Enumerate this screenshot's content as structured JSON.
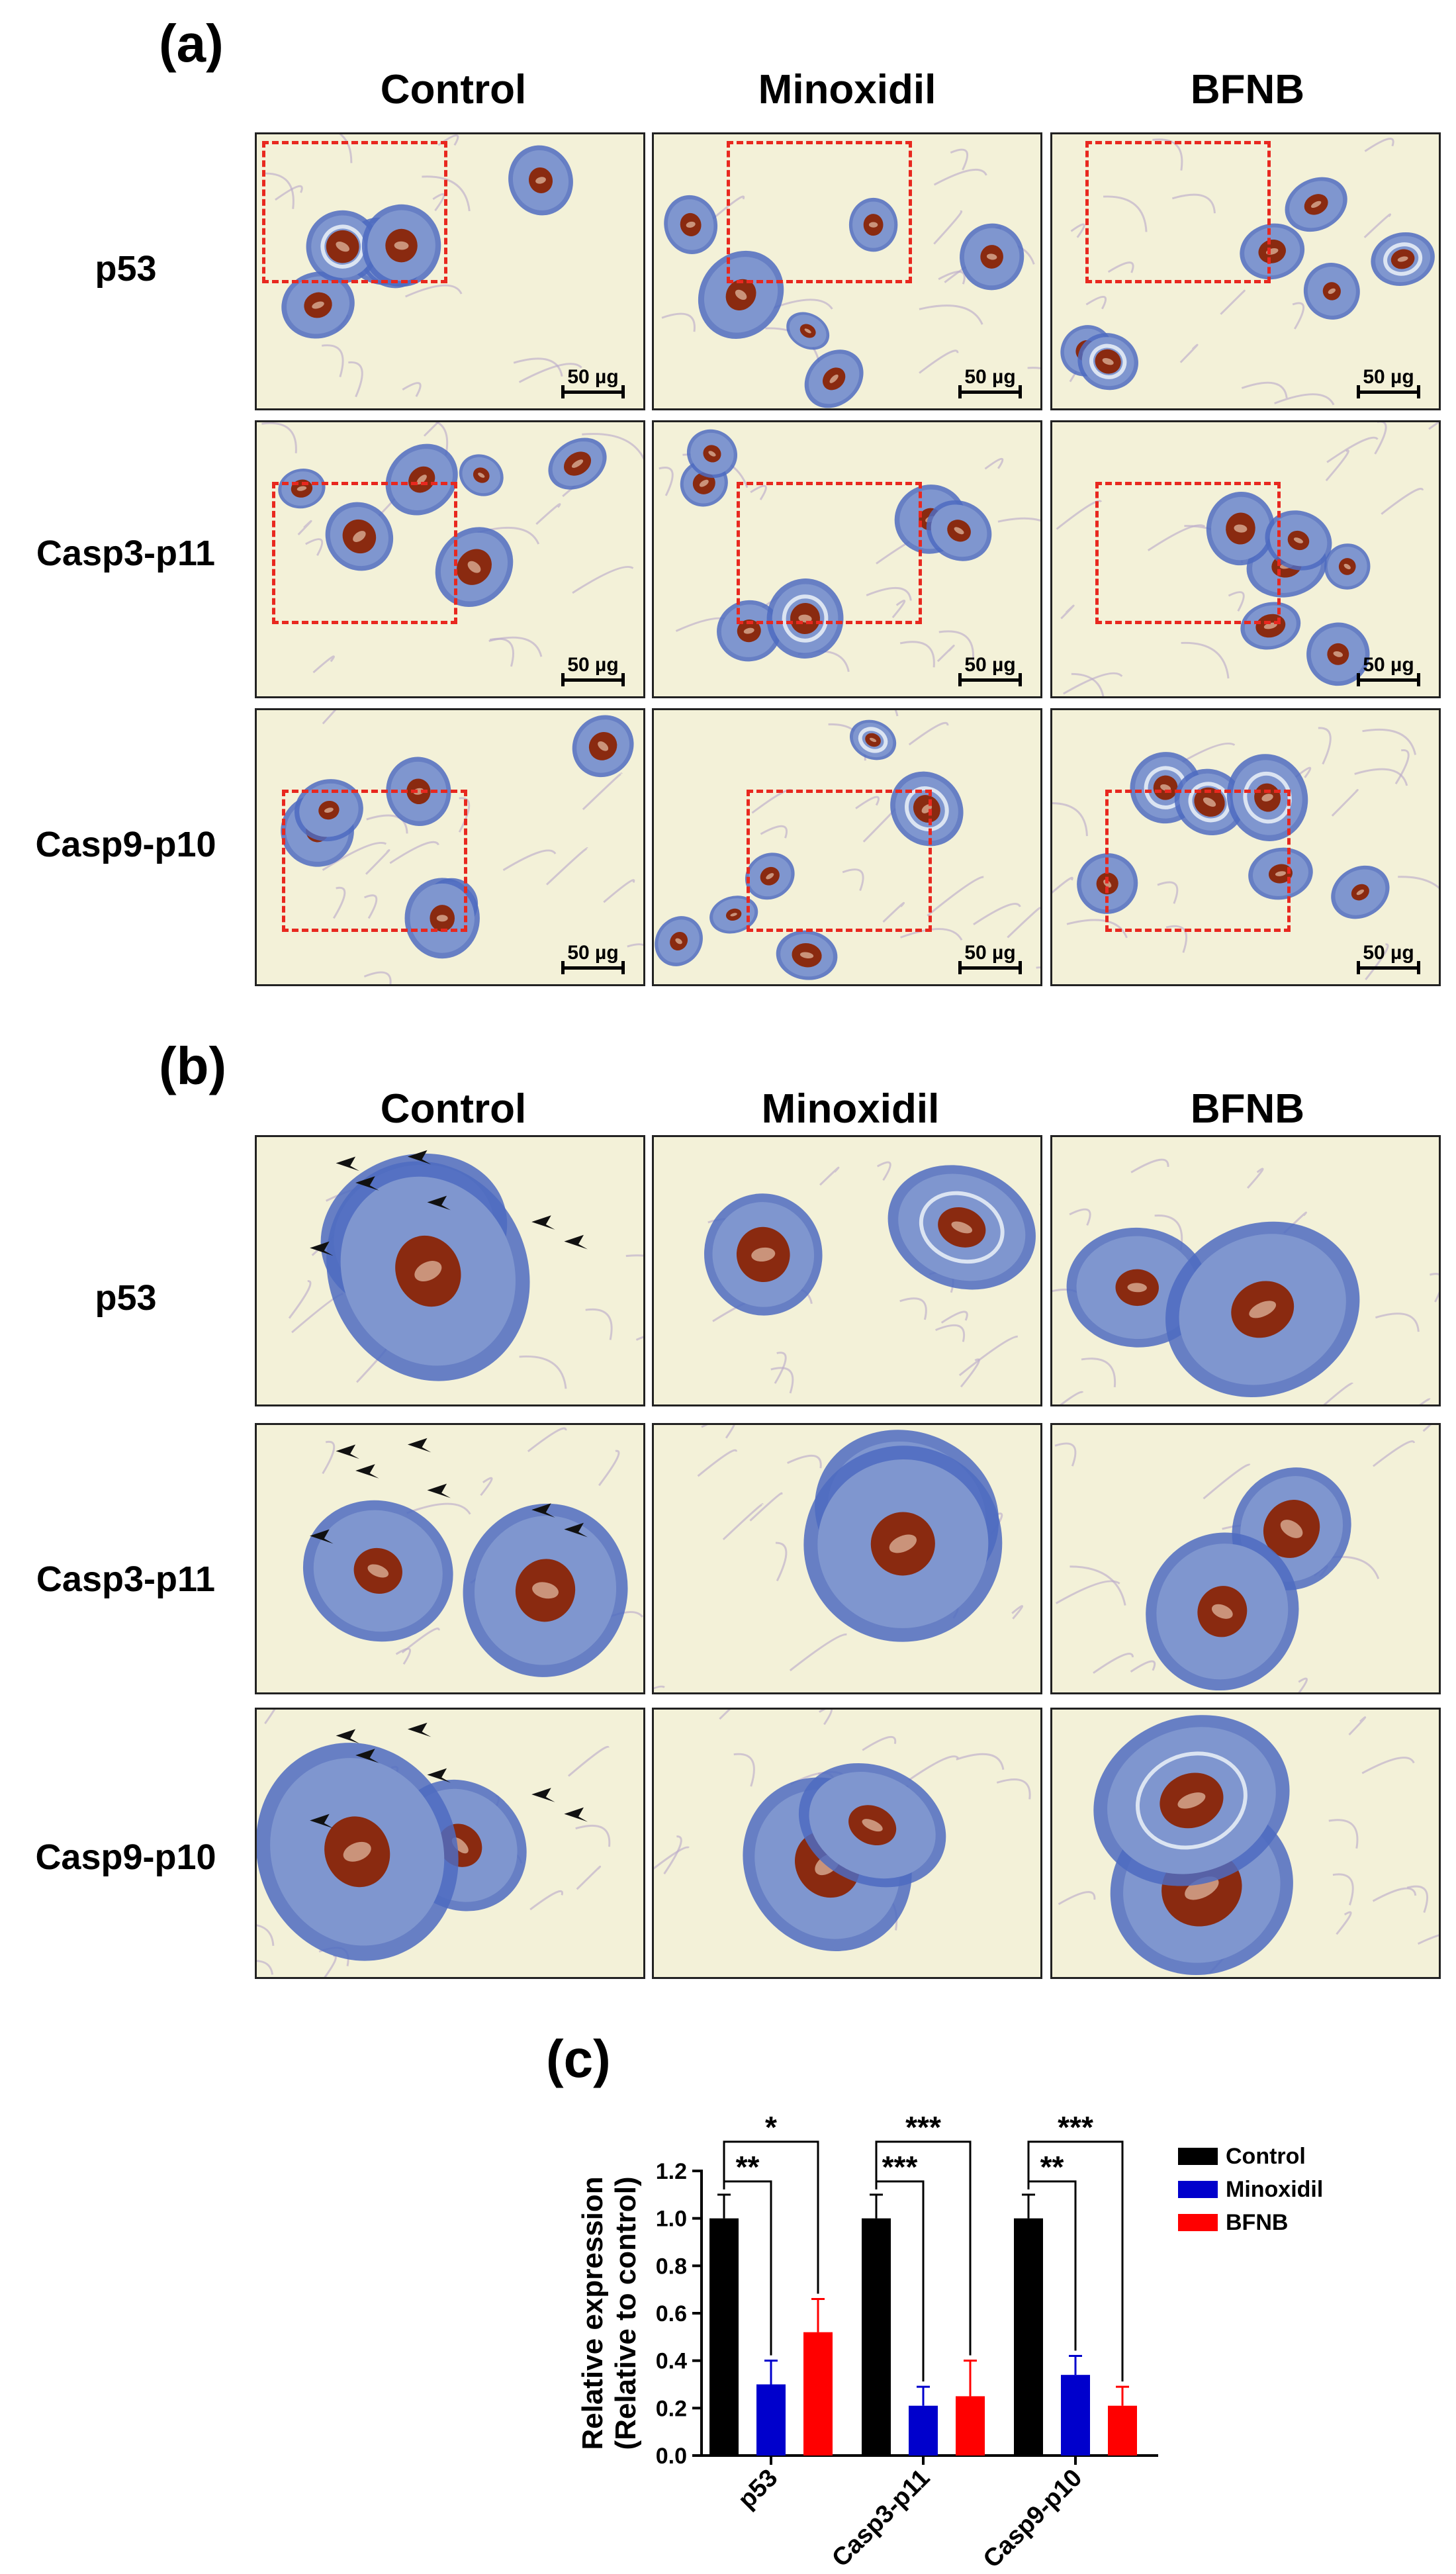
{
  "panel_a": {
    "letter": "(a)",
    "columns": [
      "Control",
      "Minoxidil",
      "BFNB"
    ],
    "rows": [
      "p53",
      "Casp3-p11",
      "Casp9-p10"
    ],
    "scale_label": "50 µg"
  },
  "panel_b": {
    "letter": "(b)",
    "columns": [
      "Control",
      "Minoxidil",
      "BFNB"
    ],
    "rows": [
      "p53",
      "Casp3-p11",
      "Casp9-p10"
    ]
  },
  "panel_c": {
    "letter": "(c)"
  },
  "colors": {
    "background_tissue": "#f3f1d8",
    "follicle_sheath": "#7f96cf",
    "follicle_outer": "#4d6bc1",
    "stain": "#8a2a10",
    "annotation_box": "#e8281f",
    "arrow": "#111111"
  },
  "chart_data": {
    "type": "bar",
    "categories": [
      "p53",
      "Casp3-p11",
      "Casp9-p10"
    ],
    "series": [
      {
        "name": "Control",
        "color": "#000000",
        "values": [
          1.0,
          1.0,
          1.0
        ],
        "errors": [
          0.1,
          0.1,
          0.1
        ]
      },
      {
        "name": "Minoxidil",
        "color": "#0000cc",
        "values": [
          0.3,
          0.21,
          0.34
        ],
        "errors": [
          0.1,
          0.08,
          0.08
        ]
      },
      {
        "name": "BFNB",
        "color": "#ff0000",
        "values": [
          0.52,
          0.25,
          0.21
        ],
        "errors": [
          0.14,
          0.15,
          0.08
        ]
      }
    ],
    "ylabel": "Relative expression",
    "ylabel2": "(Relative to control)",
    "ylim": [
      0,
      1.2
    ],
    "yticks": [
      "0.0",
      "0.2",
      "0.4",
      "0.6",
      "0.8",
      "1.0",
      "1.2"
    ],
    "significance": [
      {
        "group": 0,
        "vs": "Minoxidil",
        "label": "**"
      },
      {
        "group": 0,
        "vs": "BFNB",
        "label": "*"
      },
      {
        "group": 1,
        "vs": "Minoxidil",
        "label": "***"
      },
      {
        "group": 1,
        "vs": "BFNB",
        "label": "***"
      },
      {
        "group": 2,
        "vs": "Minoxidil",
        "label": "**"
      },
      {
        "group": 2,
        "vs": "BFNB",
        "label": "***"
      }
    ],
    "legend_position": "right"
  }
}
